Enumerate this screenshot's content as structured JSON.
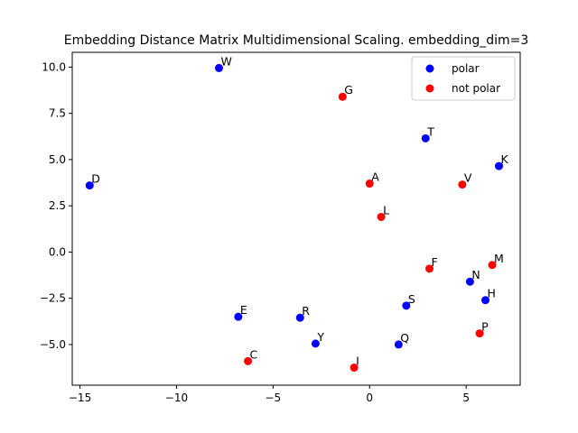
{
  "chart_data": {
    "type": "scatter",
    "title": "Embedding Distance Matrix Multidimensional Scaling. embedding_dim=3",
    "xlabel": "",
    "ylabel": "",
    "xlim": [
      -15.4,
      7.8
    ],
    "ylim": [
      -7.2,
      10.8
    ],
    "xticks": [
      -15,
      -10,
      -5,
      0,
      5
    ],
    "yticks": [
      -5.0,
      -2.5,
      0.0,
      2.5,
      5.0,
      7.5,
      10.0
    ],
    "xtick_labels": [
      "−15",
      "−10",
      "−5",
      "0",
      "5"
    ],
    "ytick_labels": [
      "−5.0",
      "−2.5",
      "0.0",
      "2.5",
      "5.0",
      "7.5",
      "10.0"
    ],
    "grid": false,
    "legend": {
      "placement": "top-right"
    },
    "series": [
      {
        "name": "polar",
        "color": "#0000ff",
        "points": [
          {
            "label": "W",
            "x": -7.8,
            "y": 9.95
          },
          {
            "label": "D",
            "x": -14.5,
            "y": 3.6
          },
          {
            "label": "T",
            "x": 2.9,
            "y": 6.15
          },
          {
            "label": "K",
            "x": 6.7,
            "y": 4.65
          },
          {
            "label": "N",
            "x": 5.2,
            "y": -1.6
          },
          {
            "label": "H",
            "x": 6.0,
            "y": -2.6
          },
          {
            "label": "S",
            "x": 1.9,
            "y": -2.9
          },
          {
            "label": "E",
            "x": -6.8,
            "y": -3.5
          },
          {
            "label": "R",
            "x": -3.6,
            "y": -3.55
          },
          {
            "label": "Y",
            "x": -2.8,
            "y": -4.95
          },
          {
            "label": "Q",
            "x": 1.5,
            "y": -5.0
          }
        ]
      },
      {
        "name": "not polar",
        "color": "#ff0000",
        "points": [
          {
            "label": "G",
            "x": -1.4,
            "y": 8.4
          },
          {
            "label": "A",
            "x": 0.0,
            "y": 3.7
          },
          {
            "label": "V",
            "x": 4.8,
            "y": 3.65
          },
          {
            "label": "L",
            "x": 0.6,
            "y": 1.9
          },
          {
            "label": "F",
            "x": 3.1,
            "y": -0.9
          },
          {
            "label": "M",
            "x": 6.35,
            "y": -0.7
          },
          {
            "label": "P",
            "x": 5.7,
            "y": -4.4
          },
          {
            "label": "C",
            "x": -6.3,
            "y": -5.9
          },
          {
            "label": "I",
            "x": -0.8,
            "y": -6.25
          }
        ]
      }
    ]
  }
}
